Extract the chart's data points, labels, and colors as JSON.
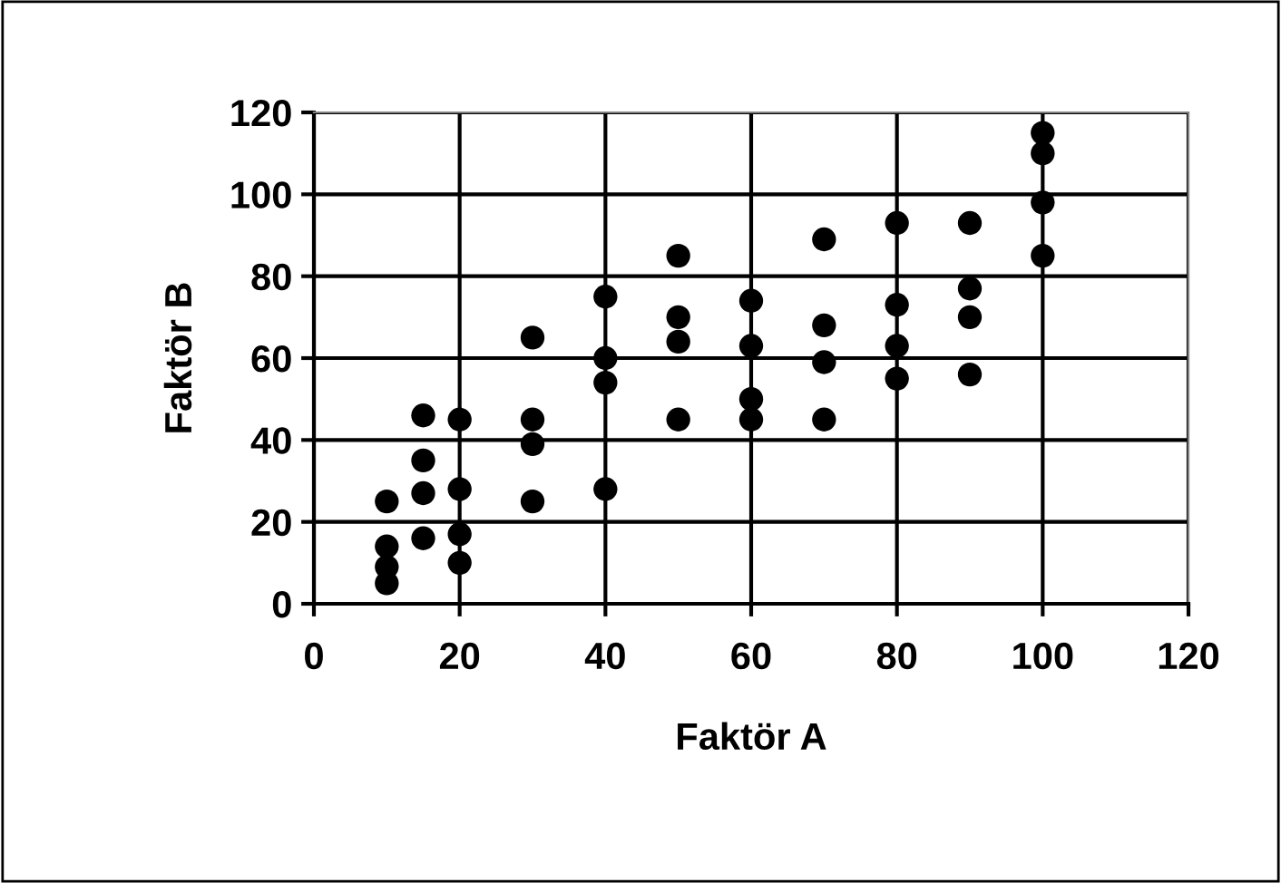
{
  "chart_data": {
    "type": "scatter",
    "xlabel": "Faktör A",
    "ylabel": "Faktör B",
    "x": [
      10,
      10,
      10,
      10,
      15,
      15,
      15,
      15,
      20,
      20,
      20,
      20,
      30,
      30,
      30,
      30,
      40,
      40,
      40,
      40,
      50,
      50,
      50,
      50,
      60,
      60,
      60,
      60,
      70,
      70,
      70,
      70,
      80,
      80,
      80,
      80,
      90,
      90,
      90,
      90,
      100,
      100,
      100,
      100
    ],
    "values": [
      25,
      14,
      9,
      5,
      46,
      35,
      27,
      16,
      45,
      28,
      17,
      10,
      65,
      45,
      39,
      25,
      75,
      60,
      54,
      28,
      85,
      70,
      64,
      45,
      74,
      63,
      50,
      45,
      89,
      68,
      59,
      45,
      93,
      73,
      63,
      55,
      93,
      77,
      70,
      56,
      115,
      110,
      98,
      85
    ],
    "color": "#000000",
    "marker": "circle",
    "xlim": [
      0,
      120
    ],
    "xticks": [
      0,
      20,
      40,
      60,
      80,
      100,
      120
    ],
    "ylim": [
      0,
      120
    ],
    "yticks": [
      0,
      20,
      40,
      60,
      80,
      100,
      120
    ],
    "grid": true,
    "legend": false
  }
}
